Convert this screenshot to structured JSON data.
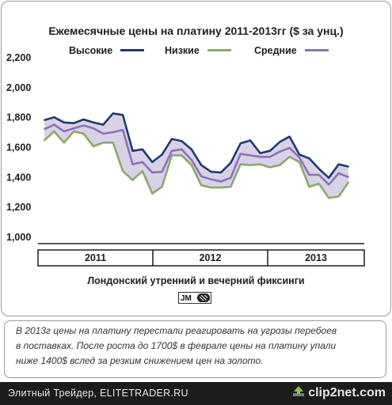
{
  "chart_data": {
    "type": "line",
    "title": "Ежемесячные цены на платину 2011-2013гг ($ за унц.)",
    "xlabel": "Лондонский утренний и вечерний фиксинги",
    "ylabel": "",
    "ylim": [
      1000,
      2200
    ],
    "yticks": [
      "2,200",
      "2,000",
      "1,800",
      "1,600",
      "1,400",
      "1,200",
      "1,000"
    ],
    "ytick_values": [
      2200,
      2000,
      1800,
      1600,
      1400,
      1200,
      1000
    ],
    "year_labels": [
      "2011",
      "2012",
      "2013"
    ],
    "x_months": [
      "2011-01",
      "2011-02",
      "2011-03",
      "2011-04",
      "2011-05",
      "2011-06",
      "2011-07",
      "2011-08",
      "2011-09",
      "2011-10",
      "2011-11",
      "2011-12",
      "2012-01",
      "2012-02",
      "2012-03",
      "2012-04",
      "2012-05",
      "2012-06",
      "2012-07",
      "2012-08",
      "2012-09",
      "2012-10",
      "2012-11",
      "2012-12",
      "2013-01",
      "2013-02",
      "2013-03",
      "2013-04",
      "2013-05",
      "2013-06",
      "2013-07",
      "2013-08"
    ],
    "legend_position": "top",
    "grid": false,
    "shaded_band": "between high and low",
    "series": [
      {
        "name": "Высокие",
        "color": "#1f3a6e",
        "values": [
          1825,
          1845,
          1810,
          1805,
          1830,
          1810,
          1795,
          1870,
          1860,
          1620,
          1630,
          1545,
          1595,
          1700,
          1685,
          1630,
          1525,
          1480,
          1475,
          1540,
          1670,
          1690,
          1605,
          1620,
          1680,
          1715,
          1595,
          1570,
          1500,
          1440,
          1530,
          1515
        ]
      },
      {
        "name": "Низкие",
        "color": "#8aa86a",
        "values": [
          1690,
          1750,
          1675,
          1750,
          1735,
          1650,
          1675,
          1675,
          1485,
          1425,
          1485,
          1335,
          1380,
          1590,
          1590,
          1525,
          1390,
          1375,
          1375,
          1380,
          1530,
          1525,
          1530,
          1510,
          1525,
          1580,
          1545,
          1380,
          1400,
          1305,
          1315,
          1410
        ]
      },
      {
        "name": "Средние",
        "color": "#8a72b8",
        "values": [
          1765,
          1795,
          1750,
          1770,
          1790,
          1770,
          1735,
          1745,
          1760,
          1530,
          1545,
          1475,
          1480,
          1620,
          1630,
          1560,
          1450,
          1430,
          1415,
          1440,
          1600,
          1590,
          1580,
          1580,
          1615,
          1640,
          1575,
          1460,
          1460,
          1395,
          1470,
          1445
        ]
      }
    ]
  },
  "note": {
    "lines": [
      "В 2013г цены на платину перестали реагировать на угрозы перебоев",
      "в поставках. После роста до 1700$ в феврале цены на платину упали",
      "ниже 1400$ вслед за резким снижением цен на золото."
    ]
  },
  "footer": {
    "logo_text": "JM",
    "watermark": "Элитный Трейдер, ELITETRADER.RU",
    "site": "clip2net.com"
  },
  "colors": {
    "band": "#d9d2e6",
    "axis": "#1e1e1e",
    "bottom_bar": "#1c1c1c"
  }
}
